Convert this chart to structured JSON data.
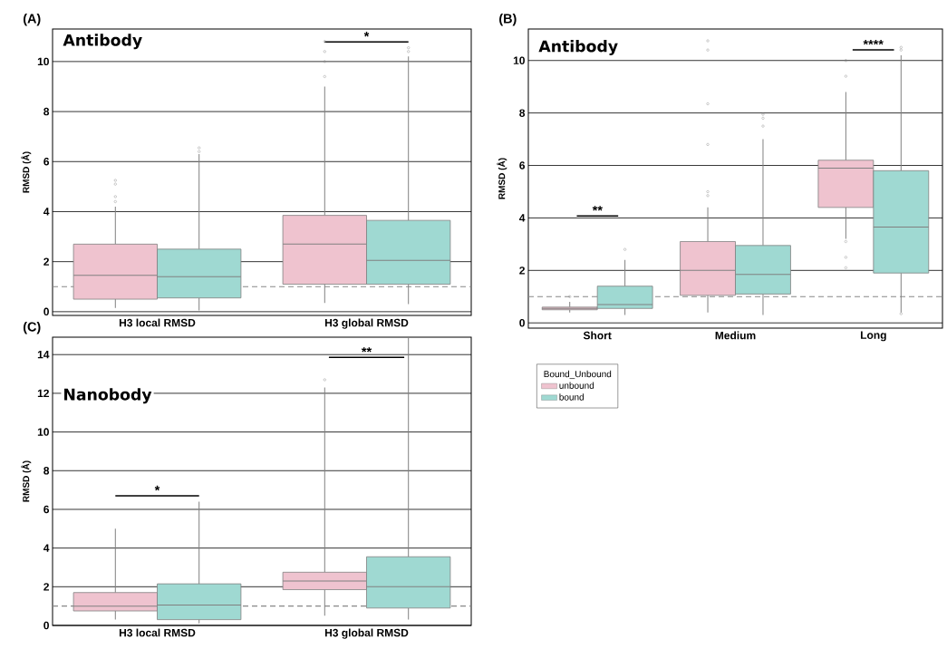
{
  "chart_data": [
    {
      "type": "box",
      "title": "Antibody",
      "ylabel": "RMSD (Å)",
      "categories": [
        "H3 local RMSD",
        "H3 global RMSD"
      ],
      "ylim": [
        -0.15,
        11.3
      ],
      "yticks": [
        0,
        2,
        4,
        6,
        8,
        10
      ],
      "grid": "y",
      "legend": false,
      "series": [
        {
          "color": "#efc3cf",
          "boxes": [
            {
              "low": 0.15,
              "q1": 0.5,
              "median": 1.45,
              "q3": 2.7,
              "high": 4.2,
              "outliers": [
                4.4,
                4.6,
                5.1,
                5.25
              ]
            },
            {
              "low": 0.35,
              "q1": 1.1,
              "median": 2.7,
              "q3": 3.85,
              "high": 9.0,
              "outliers": [
                9.4,
                10.0,
                10.4,
                10.8
              ]
            }
          ]
        },
        {
          "color": "#9fd9d2",
          "boxes": [
            {
              "low": 0.05,
              "q1": 0.55,
              "median": 1.4,
              "q3": 2.5,
              "high": 6.3,
              "outliers": [
                6.4,
                6.55
              ]
            },
            {
              "low": 0.3,
              "q1": 1.1,
              "median": 2.05,
              "q3": 3.65,
              "high": 10.2,
              "outliers": [
                10.4,
                10.55
              ]
            }
          ]
        }
      ],
      "ref_lines": [
        {
          "axis": "y",
          "value": 1,
          "color": "#888888",
          "line_style": "dashed"
        }
      ],
      "annotations": [
        "(A)",
        "*"
      ]
    },
    {
      "type": "box",
      "title": "Antibody",
      "ylabel": "RMSD (Å)",
      "categories": [
        "Short",
        "Medium",
        "Long"
      ],
      "ylim": [
        -0.2,
        11.2
      ],
      "yticks": [
        0,
        2,
        4,
        6,
        8,
        10
      ],
      "grid": "y",
      "legend": "bottom",
      "legend_title": "Bound_Unbound",
      "series": [
        {
          "name": "unbound",
          "color": "#efc3cf",
          "boxes": [
            {
              "low": 0.4,
              "q1": 0.5,
              "median": 0.55,
              "q3": 0.6,
              "high": 0.8,
              "outliers": [
                1.0
              ]
            },
            {
              "low": 0.4,
              "q1": 1.05,
              "median": 2.0,
              "q3": 3.1,
              "high": 4.4,
              "outliers": [
                4.85,
                5.0,
                6.8,
                8.35,
                10.4,
                10.75
              ]
            },
            {
              "low": 3.2,
              "q1": 4.4,
              "median": 5.9,
              "q3": 6.2,
              "high": 8.8,
              "outliers": [
                2.1,
                2.5,
                3.1,
                9.4,
                10.0
              ]
            }
          ]
        },
        {
          "name": "bound",
          "color": "#9fd9d2",
          "boxes": [
            {
              "low": 0.3,
              "q1": 0.55,
              "median": 0.7,
              "q3": 1.4,
              "high": 2.4,
              "outliers": [
                2.8
              ]
            },
            {
              "low": 0.3,
              "q1": 1.1,
              "median": 1.85,
              "q3": 2.95,
              "high": 7.0,
              "outliers": [
                7.5,
                7.8,
                7.95
              ]
            },
            {
              "low": 0.4,
              "q1": 1.9,
              "median": 3.65,
              "q3": 5.8,
              "high": 10.2,
              "outliers": [
                0.35,
                10.4,
                10.5
              ]
            }
          ]
        }
      ],
      "ref_lines": [
        {
          "axis": "y",
          "value": 1,
          "color": "#888888",
          "line_style": "dashed"
        }
      ],
      "annotations": [
        "(B)",
        "**",
        "****"
      ]
    },
    {
      "type": "box",
      "title": "Nanobody",
      "ylabel": "RMSD (Å)",
      "categories": [
        "H3 local RMSD",
        "H3 global RMSD"
      ],
      "ylim": [
        0,
        14.9
      ],
      "yticks": [
        0,
        2,
        4,
        6,
        8,
        10,
        12,
        14
      ],
      "grid": "y",
      "legend": false,
      "series": [
        {
          "color": "#efc3cf",
          "boxes": [
            {
              "low": 0.3,
              "q1": 0.75,
              "median": 1.0,
              "q3": 1.7,
              "high": 5.0
            },
            {
              "low": 0.5,
              "q1": 1.85,
              "median": 2.3,
              "q3": 2.75,
              "high": 12.3,
              "outliers": [
                12.7
              ]
            }
          ]
        },
        {
          "color": "#9fd9d2",
          "boxes": [
            {
              "low": 0.1,
              "q1": 0.3,
              "median": 1.05,
              "q3": 2.15,
              "high": 6.4
            },
            {
              "low": 0.3,
              "q1": 0.9,
              "median": 2.0,
              "q3": 3.55,
              "high": 14.9
            }
          ]
        }
      ],
      "ref_lines": [
        {
          "axis": "y",
          "value": 1,
          "color": "#888888",
          "line_style": "dashed"
        }
      ],
      "annotations": [
        "(C)",
        "*",
        "**"
      ]
    }
  ]
}
